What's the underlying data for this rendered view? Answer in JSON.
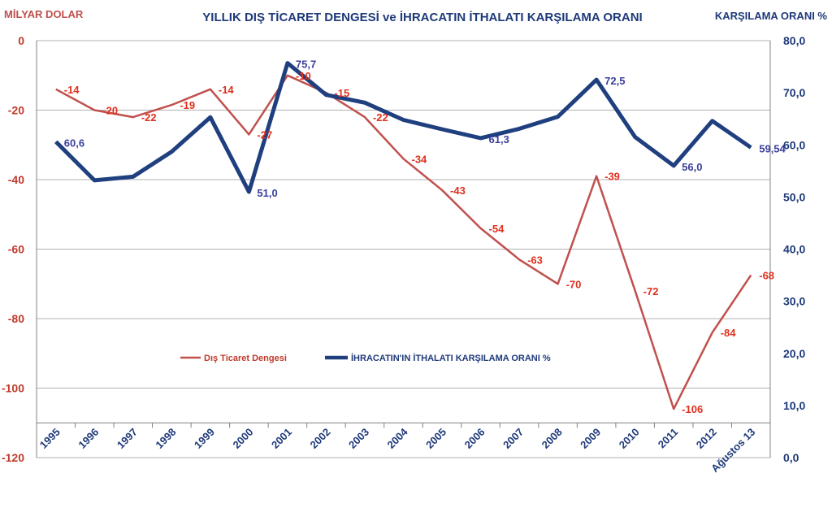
{
  "chart_data": {
    "type": "line",
    "title": "YILLIK DIŞ TİCARET DENGESİ  ve İHRACATIN İTHALATI KARŞILAMA ORANI",
    "left_axis_label": "MİLYAR DOLAR",
    "right_axis_label": "KARŞILAMA ORANI %",
    "categories": [
      "1995",
      "1996",
      "1997",
      "1998",
      "1999",
      "2000",
      "2001",
      "2002",
      "2003",
      "2004",
      "2005",
      "2006",
      "2007",
      "2008",
      "2009",
      "2010",
      "2011",
      "2012",
      "Ağustos 13"
    ],
    "left_ylim": [
      -120,
      0
    ],
    "left_ticks": [
      "0",
      "-20",
      "-40",
      "-60",
      "-80",
      "-100",
      "-120"
    ],
    "right_ylim": [
      0,
      80
    ],
    "right_ticks": [
      "80,0",
      "70,0",
      "60,0",
      "50,0",
      "40,0",
      "30,0",
      "20,0",
      "10,0",
      "0,0"
    ],
    "grid": true,
    "legend_position": "bottom-left",
    "series": [
      {
        "name": "Dış Ticaret Dengesi",
        "axis": "left",
        "color": "#c0504d",
        "values": [
          -14,
          -20,
          -22,
          -18.5,
          -14,
          -27,
          -10,
          -15,
          -22,
          -34,
          -43,
          -54,
          -63,
          -70,
          -39,
          -72,
          -106,
          -84,
          -67.5
        ],
        "labels": [
          "-14",
          "-20",
          "-22",
          "-19",
          "-14",
          "-27",
          "-10",
          "-15",
          "-22",
          "-34",
          "-43",
          "-54",
          "-63",
          "-70",
          "-39",
          "-72",
          "-106",
          "-84",
          "-68"
        ]
      },
      {
        "name": "İHRACATIN'IN İTHALATI KARŞILAMA ORANI %",
        "axis": "right",
        "color": "#1f3f7f",
        "values": [
          60.6,
          53.2,
          53.9,
          58.7,
          65.3,
          51.0,
          75.7,
          69.6,
          68.1,
          64.8,
          63.0,
          61.3,
          63.1,
          65.4,
          72.5,
          61.5,
          56.0,
          64.6,
          59.5
        ],
        "labels": [
          "60,6",
          "",
          "",
          "",
          "",
          "51,0",
          "75,7",
          "",
          "",
          "",
          "",
          "61,3",
          "",
          "",
          "72,5",
          "",
          "56,0",
          "",
          "59,54"
        ]
      }
    ]
  }
}
